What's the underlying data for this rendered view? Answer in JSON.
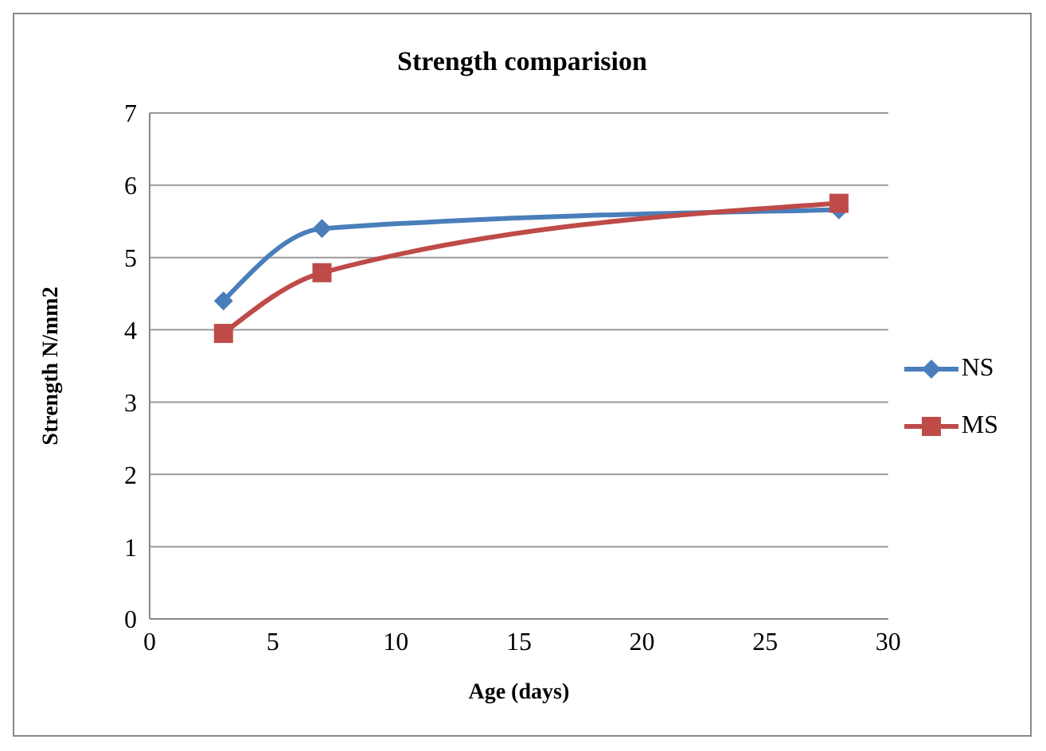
{
  "chart_data": {
    "type": "line",
    "title": "Strength comparision",
    "xlabel": "Age (days)",
    "ylabel": "Strength N/mm2",
    "x": [
      3,
      7,
      28
    ],
    "series": [
      {
        "name": "NS",
        "color": "#4a7ebb",
        "marker": "diamond",
        "values": [
          4.4,
          5.4,
          5.66
        ]
      },
      {
        "name": "MS",
        "color": "#be4b48",
        "marker": "square",
        "values": [
          3.95,
          4.79,
          5.75
        ]
      }
    ],
    "xlim": [
      0,
      30
    ],
    "xticks": [
      0,
      5,
      10,
      15,
      20,
      25,
      30
    ],
    "ylim": [
      0,
      7
    ],
    "yticks": [
      0,
      1,
      2,
      3,
      4,
      5,
      6,
      7
    ],
    "grid": "y",
    "legend": "right",
    "line_style": "solid"
  }
}
